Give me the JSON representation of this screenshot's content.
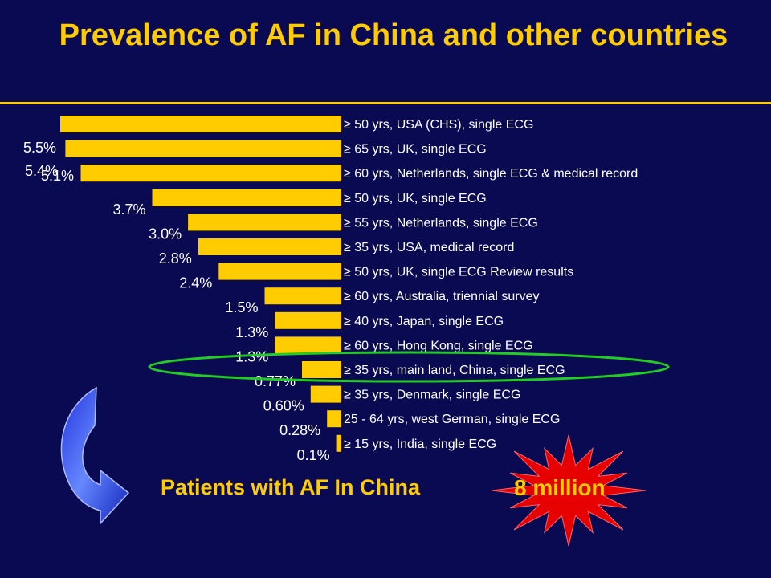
{
  "title": "Prevalence of AF in China and other countries",
  "bottom_label": "Patients with AF In China",
  "big_number": "8 million",
  "colors": {
    "background": "#0a0a52",
    "bar": "#ffcc00",
    "highlight_ellipse": "#22cc22",
    "starburst": "#e60000",
    "arrow": "#3355ee"
  },
  "chart_data": {
    "type": "bar",
    "orientation": "horizontal",
    "categories": [
      "≥ 50 yrs, USA (CHS), single ECG",
      "≥ 65 yrs, UK, single ECG",
      "≥ 60 yrs, Netherlands, single ECG & medical record",
      "≥ 50 yrs, UK, single ECG",
      "≥ 55 yrs, Netherlands, single ECG",
      "≥ 35 yrs, USA, medical record",
      "≥ 50 yrs, UK, single ECG Review results",
      "≥ 60 yrs, Australia, triennial survey",
      "≥ 40 yrs, Japan, single ECG",
      "≥ 60 yrs, Hong Kong, single ECG",
      "≥ 35 yrs, main land, China, single ECG",
      "≥ 35 yrs, Denmark, single ECG",
      "25 - 64 yrs, west German, single ECG",
      "≥ 15 yrs, India, single ECG"
    ],
    "values": [
      5.5,
      5.4,
      5.1,
      3.7,
      3.0,
      2.8,
      2.4,
      1.5,
      1.3,
      1.3,
      0.77,
      0.6,
      0.28,
      0.1
    ],
    "value_labels": [
      "5.5%",
      "5.4%",
      "5.1%",
      "3.7%",
      "3.0%",
      "2.8%",
      "2.4%",
      "1.5%",
      "1.3%",
      "1.3%",
      "0.77%",
      "0.60%",
      "0.28%",
      "0.1%"
    ],
    "highlighted_category": "≥ 35 yrs, main land, China, single ECG",
    "xlim": [
      0,
      5.5
    ],
    "grid": false
  }
}
